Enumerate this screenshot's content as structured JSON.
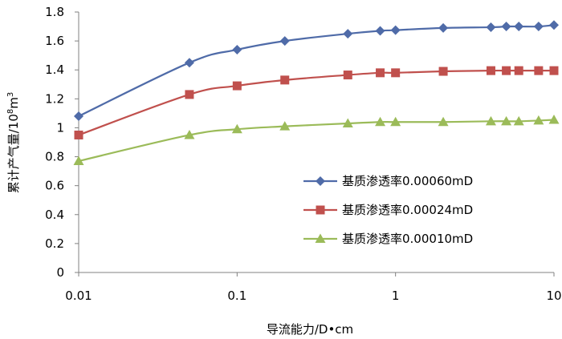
{
  "chart_data": {
    "type": "line",
    "x_scale": "log",
    "xlabel": "导流能力/D•cm",
    "ylabel_main": "累计产气量/10",
    "ylabel_sup": "8",
    "ylabel_unit": "m",
    "ylabel_unit_sup": "3",
    "xlim": [
      0.01,
      10
    ],
    "ylim": [
      0,
      1.8
    ],
    "x_ticks": [
      {
        "value": 0.01,
        "label": "0.01"
      },
      {
        "value": 0.1,
        "label": "0.1"
      },
      {
        "value": 1,
        "label": "1"
      },
      {
        "value": 10,
        "label": "10"
      }
    ],
    "y_ticks": [
      {
        "value": 0,
        "label": "0"
      },
      {
        "value": 0.2,
        "label": "0.2"
      },
      {
        "value": 0.4,
        "label": "0.4"
      },
      {
        "value": 0.6,
        "label": "0.6"
      },
      {
        "value": 0.8,
        "label": "0.8"
      },
      {
        "value": 1.0,
        "label": "1"
      },
      {
        "value": 1.2,
        "label": "1.2"
      },
      {
        "value": 1.4,
        "label": "1.4"
      },
      {
        "value": 1.6,
        "label": "1.6"
      },
      {
        "value": 1.8,
        "label": "1.8"
      }
    ],
    "grid": false,
    "legend_position": "bottom-right",
    "series": [
      {
        "name": "基质渗透率0.00060mD",
        "color": "#4f6ba8",
        "marker": "diamond",
        "x": [
          0.01,
          0.05,
          0.1,
          0.2,
          0.5,
          0.8,
          1,
          2,
          4,
          5,
          6,
          8,
          10
        ],
        "y": [
          1.08,
          1.45,
          1.54,
          1.6,
          1.65,
          1.67,
          1.675,
          1.69,
          1.695,
          1.7,
          1.7,
          1.7,
          1.71
        ]
      },
      {
        "name": "基质渗透率0.00024mD",
        "color": "#c0504d",
        "marker": "square",
        "x": [
          0.01,
          0.05,
          0.1,
          0.2,
          0.5,
          0.8,
          1,
          2,
          4,
          5,
          6,
          8,
          10
        ],
        "y": [
          0.95,
          1.23,
          1.29,
          1.33,
          1.365,
          1.38,
          1.38,
          1.39,
          1.395,
          1.395,
          1.395,
          1.395,
          1.395
        ]
      },
      {
        "name": "基质渗透率0.00010mD",
        "color": "#9bbb59",
        "marker": "triangle",
        "x": [
          0.01,
          0.05,
          0.1,
          0.2,
          0.5,
          0.8,
          1,
          2,
          4,
          5,
          6,
          8,
          10
        ],
        "y": [
          0.77,
          0.95,
          0.99,
          1.01,
          1.03,
          1.04,
          1.04,
          1.04,
          1.045,
          1.045,
          1.045,
          1.05,
          1.055
        ]
      }
    ]
  }
}
